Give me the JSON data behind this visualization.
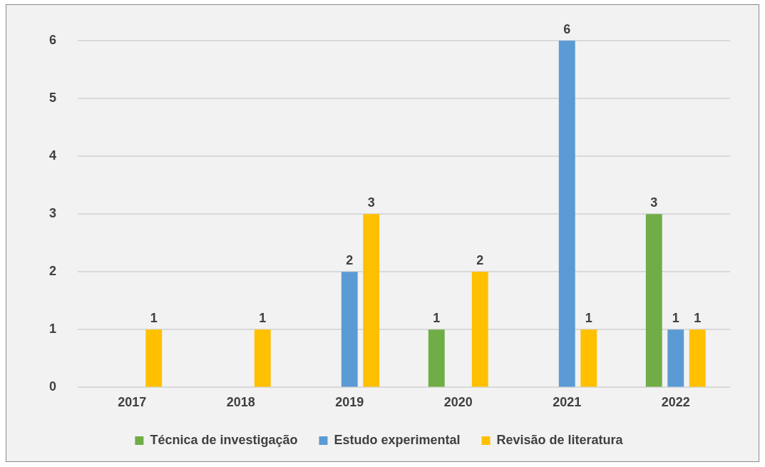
{
  "chart_data": {
    "type": "bar",
    "categories": [
      "2017",
      "2018",
      "2019",
      "2020",
      "2021",
      "2022"
    ],
    "series": [
      {
        "name": "Técnica de investigação",
        "color": "#70ad47",
        "values": [
          null,
          null,
          null,
          1,
          null,
          3
        ]
      },
      {
        "name": "Estudo experimental",
        "color": "#5b9bd5",
        "values": [
          null,
          null,
          2,
          null,
          6,
          1
        ]
      },
      {
        "name": "Revisão de literatura",
        "color": "#ffc000",
        "values": [
          1,
          1,
          3,
          2,
          1,
          1
        ]
      }
    ],
    "ylim": [
      0,
      6
    ],
    "yticks": [
      0,
      1,
      2,
      3,
      4,
      5,
      6
    ],
    "grid": "y",
    "legend": "bottom",
    "data_labels": true
  }
}
